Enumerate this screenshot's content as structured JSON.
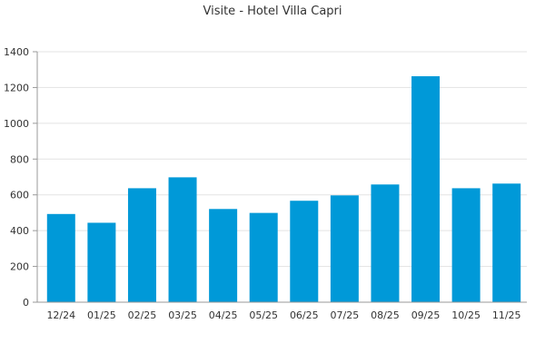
{
  "chart_data": {
    "type": "bar",
    "title": "Visite - Hotel Villa Capri",
    "xlabel": "",
    "ylabel": "",
    "categories": [
      "12/24",
      "01/25",
      "02/25",
      "03/25",
      "04/25",
      "05/25",
      "06/25",
      "07/25",
      "08/25",
      "09/25",
      "10/25",
      "11/25"
    ],
    "values": [
      493,
      444,
      637,
      698,
      521,
      499,
      567,
      597,
      658,
      1263,
      637,
      663
    ],
    "ylim": [
      0,
      1400
    ],
    "yticks": [
      0,
      200,
      400,
      600,
      800,
      1000,
      1200,
      1400
    ],
    "grid": true,
    "legend": "none",
    "bar_color": "#0099d8"
  }
}
